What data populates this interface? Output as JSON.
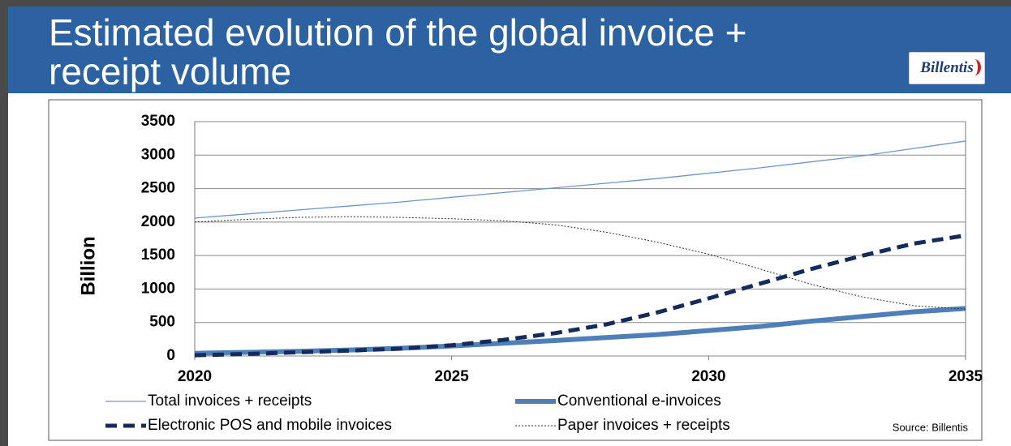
{
  "header": {
    "title": "Estimated evolution of the global invoice + receipt volume",
    "logo": "Billentis"
  },
  "chart_data": {
    "type": "line",
    "ylabel": "Billion",
    "x": [
      2020,
      2021,
      2022,
      2023,
      2024,
      2025,
      2026,
      2027,
      2028,
      2029,
      2030,
      2031,
      2032,
      2033,
      2034,
      2035
    ],
    "series": [
      {
        "name": "Total invoices + receipts",
        "color": "#6d96cc",
        "width": 1.3,
        "dash": "none",
        "values": [
          2060,
          2120,
          2180,
          2240,
          2300,
          2370,
          2440,
          2510,
          2580,
          2650,
          2730,
          2810,
          2900,
          2990,
          3100,
          3210
        ]
      },
      {
        "name": "Conventional e-invoices",
        "color": "#4f7fb8",
        "width": 6,
        "dash": "none",
        "values": [
          40,
          55,
          70,
          90,
          115,
          150,
          190,
          230,
          275,
          320,
          380,
          440,
          520,
          590,
          660,
          710
        ]
      },
      {
        "name": "Electronic POS and mobile invoices",
        "color": "#142b5c",
        "width": 5,
        "dash": "14 8",
        "values": [
          10,
          30,
          55,
          80,
          110,
          160,
          240,
          340,
          470,
          650,
          860,
          1080,
          1300,
          1500,
          1680,
          1800
        ]
      },
      {
        "name": "Paper invoices + receipts",
        "color": "#333333",
        "width": 1,
        "dash": "2 2",
        "values": [
          2000,
          2040,
          2070,
          2080,
          2070,
          2050,
          2020,
          1960,
          1850,
          1700,
          1520,
          1300,
          1070,
          880,
          750,
          700
        ]
      }
    ],
    "xlim": [
      2020,
      2035
    ],
    "xticks": [
      2020,
      2025,
      2030,
      2035
    ],
    "ylim": [
      0,
      3500
    ],
    "yticks": [
      0,
      500,
      1000,
      1500,
      2000,
      2500,
      3000,
      3500
    ],
    "grid": true,
    "source": "Source: Billentis"
  }
}
